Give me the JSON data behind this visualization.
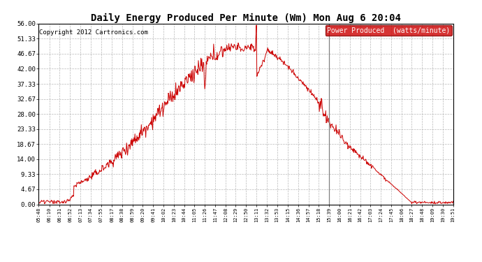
{
  "title": "Daily Energy Produced Per Minute (Wm) Mon Aug 6 20:04",
  "copyright": "Copyright 2012 Cartronics.com",
  "legend_label": "Power Produced  (watts/minute)",
  "legend_bg": "#cc0000",
  "legend_fg": "#ffffff",
  "line_color": "#cc0000",
  "background_color": "#ffffff",
  "grid_color": "#b0b0b0",
  "ylim": [
    0,
    56.0
  ],
  "yticks": [
    0.0,
    4.67,
    9.33,
    14.0,
    18.67,
    23.33,
    28.0,
    32.67,
    37.33,
    42.0,
    46.67,
    51.33,
    56.0
  ],
  "ytick_labels": [
    "0.00",
    "4.67",
    "9.33",
    "14.00",
    "18.67",
    "23.33",
    "28.00",
    "32.67",
    "37.33",
    "42.00",
    "46.67",
    "51.33",
    "56.00"
  ],
  "xtick_labels": [
    "05:48",
    "06:10",
    "06:31",
    "06:52",
    "07:13",
    "07:34",
    "07:55",
    "08:17",
    "08:38",
    "08:59",
    "09:20",
    "09:41",
    "10:02",
    "10:23",
    "10:44",
    "11:05",
    "11:26",
    "11:47",
    "12:08",
    "12:29",
    "12:50",
    "13:11",
    "13:32",
    "13:53",
    "14:15",
    "14:36",
    "14:57",
    "15:18",
    "15:39",
    "16:00",
    "16:21",
    "16:42",
    "17:03",
    "17:24",
    "17:45",
    "18:06",
    "18:27",
    "18:48",
    "19:09",
    "19:30",
    "19:51"
  ],
  "start_time": "05:48",
  "end_time": "19:51",
  "peak_time": "12:50",
  "spike_time": "13:11",
  "dip_time": "11:26",
  "gray_line_time": "15:39",
  "drop_start": "15:18",
  "drop_end": "15:39",
  "late_zero_start": "18:30",
  "early_plateau_end": "06:45",
  "rise_start": "07:00"
}
